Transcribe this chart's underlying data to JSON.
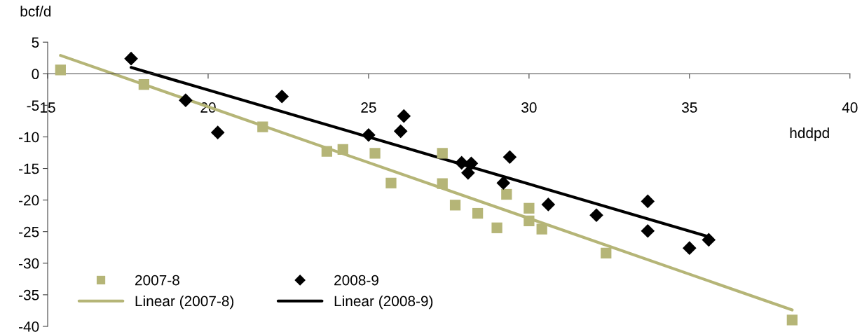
{
  "chart_data": {
    "type": "scatter",
    "xlabel": "hddpd",
    "ylabel": "bcf/d",
    "xlim": [
      15,
      40
    ],
    "xticks": [
      15,
      20,
      25,
      30,
      35,
      40
    ],
    "ylim": [
      -40,
      5
    ],
    "yticks": [
      -40,
      -35,
      -30,
      -25,
      -20,
      -15,
      -10,
      -5,
      0,
      5
    ],
    "grid": false,
    "legend": "bottom",
    "series": [
      {
        "name": "2007-8",
        "marker": "square",
        "color": "#b5b577",
        "x": [
          15.4,
          18.0,
          21.7,
          23.7,
          24.2,
          25.2,
          25.7,
          27.3,
          27.3,
          27.7,
          28.4,
          29.0,
          29.3,
          30.0,
          30.0,
          30.4,
          32.4,
          38.2
        ],
        "values": [
          0.6,
          -1.7,
          -8.4,
          -12.3,
          -12.0,
          -12.6,
          -17.3,
          -12.6,
          -17.4,
          -20.8,
          -22.1,
          -24.4,
          -19.1,
          -21.3,
          -23.3,
          -24.6,
          -28.4,
          -39.0
        ]
      },
      {
        "name": "2008-9",
        "marker": "diamond",
        "color": "#000000",
        "x": [
          17.6,
          19.3,
          20.3,
          22.3,
          25.0,
          26.0,
          26.1,
          27.9,
          28.2,
          28.1,
          29.2,
          29.4,
          30.6,
          32.1,
          33.7,
          33.7,
          35.0,
          35.6
        ],
        "values": [
          2.4,
          -4.2,
          -9.3,
          -3.6,
          -9.7,
          -9.1,
          -6.7,
          -14.1,
          -14.2,
          -15.7,
          -17.3,
          -13.2,
          -20.7,
          -22.4,
          -20.2,
          -24.9,
          -27.6,
          -26.3
        ]
      },
      {
        "name": "Linear (2007-8)",
        "type": "line",
        "marker": "none",
        "line_style": "solid",
        "color": "#b5b577",
        "x": [
          15.4,
          38.2
        ],
        "values": [
          2.9,
          -37.4
        ]
      },
      {
        "name": "Linear (2008-9)",
        "type": "line",
        "marker": "none",
        "line_style": "solid",
        "color": "#000000",
        "x": [
          17.6,
          35.6
        ],
        "values": [
          1.0,
          -25.8
        ]
      }
    ]
  }
}
